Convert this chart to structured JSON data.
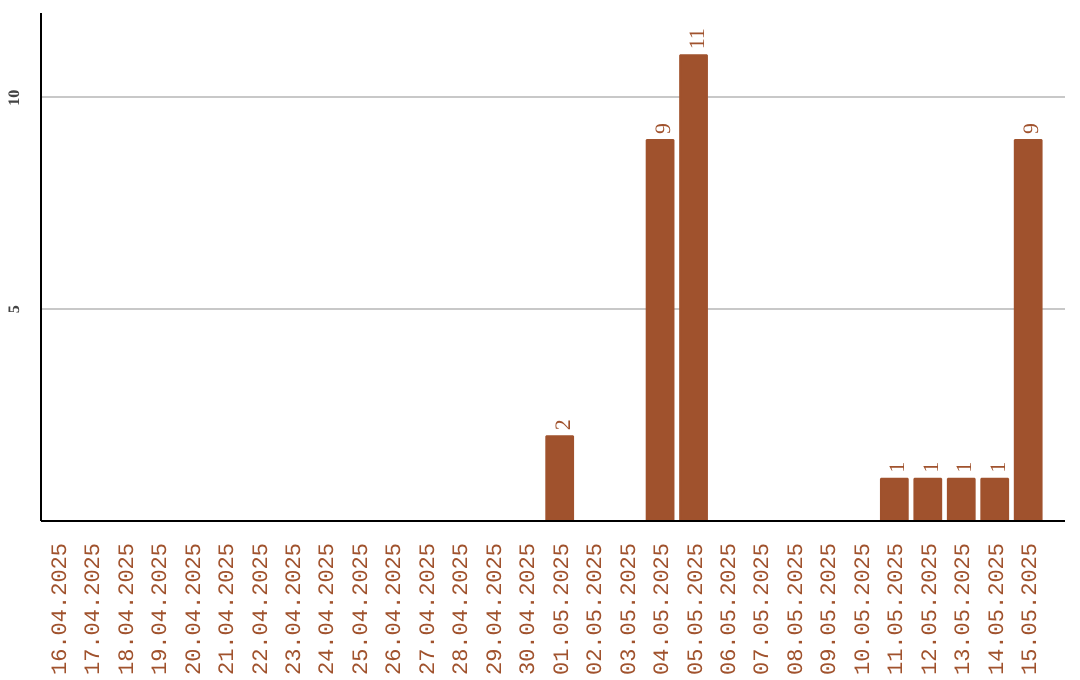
{
  "chart_data": {
    "type": "bar",
    "categories": [
      "16.04.2025",
      "17.04.2025",
      "18.04.2025",
      "19.04.2025",
      "20.04.2025",
      "21.04.2025",
      "22.04.2025",
      "23.04.2025",
      "24.04.2025",
      "25.04.2025",
      "26.04.2025",
      "27.04.2025",
      "28.04.2025",
      "29.04.2025",
      "30.04.2025",
      "01.05.2025",
      "02.05.2025",
      "03.05.2025",
      "04.05.2025",
      "05.05.2025",
      "06.05.2025",
      "07.05.2025",
      "08.05.2025",
      "09.05.2025",
      "10.05.2025",
      "11.05.2025",
      "12.05.2025",
      "13.05.2025",
      "14.05.2025",
      "15.05.2025"
    ],
    "values": [
      0,
      0,
      0,
      0,
      0,
      0,
      0,
      0,
      0,
      0,
      0,
      0,
      0,
      0,
      0,
      2,
      0,
      0,
      9,
      11,
      0,
      0,
      0,
      0,
      0,
      1,
      1,
      1,
      1,
      9
    ],
    "value_labels": [
      null,
      null,
      null,
      null,
      null,
      null,
      null,
      null,
      null,
      null,
      null,
      null,
      null,
      null,
      null,
      "2",
      null,
      null,
      "9",
      "11",
      null,
      null,
      null,
      null,
      null,
      "1",
      "1",
      "1",
      "1",
      "9"
    ],
    "color": "#a0522d",
    "ylim": [
      0,
      12
    ],
    "yticks": [
      5,
      10
    ],
    "grid": "y",
    "tick_labels": true
  }
}
